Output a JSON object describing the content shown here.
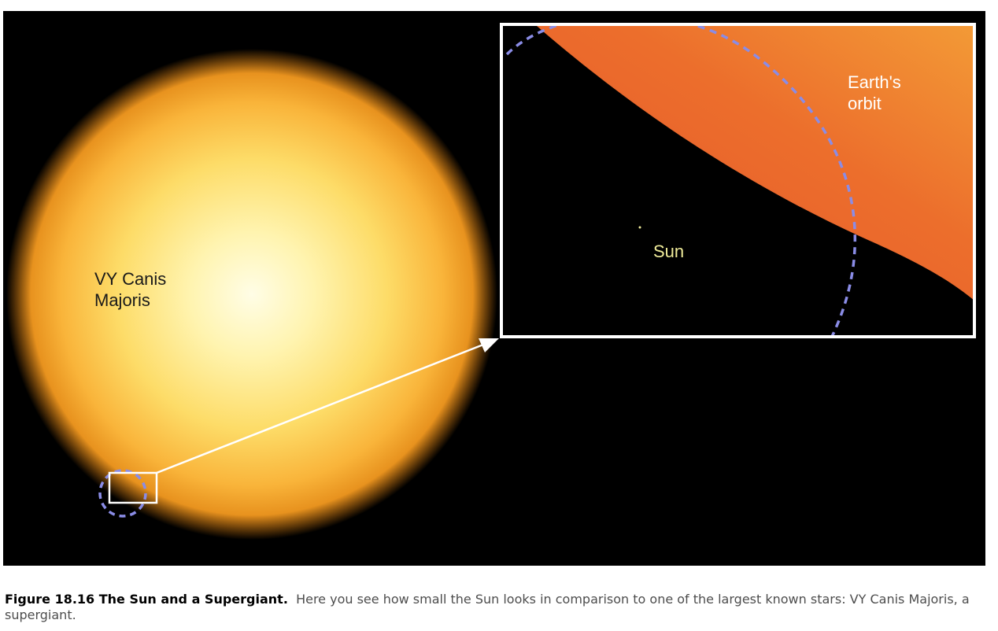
{
  "figure": {
    "labels": {
      "big_star": [
        "VY Canis",
        "Majoris"
      ],
      "orbit": [
        "Earth's",
        "orbit"
      ],
      "sun": "Sun"
    },
    "colors": {
      "background": "#000000",
      "star_core": "#fffde0",
      "star_mid": "#fcd25a",
      "star_edge": "#f59a18",
      "inset_surface": "#e8632a",
      "orbit_dash": "#8a8ce6",
      "sun_label": "#f0ec9a",
      "frame": "#ffffff"
    }
  },
  "caption": {
    "title": "Figure 18.16 The Sun and a Supergiant.",
    "text": "Here you see how small the Sun looks in comparison to one of the largest known stars: VY Canis Majoris, a supergiant."
  }
}
